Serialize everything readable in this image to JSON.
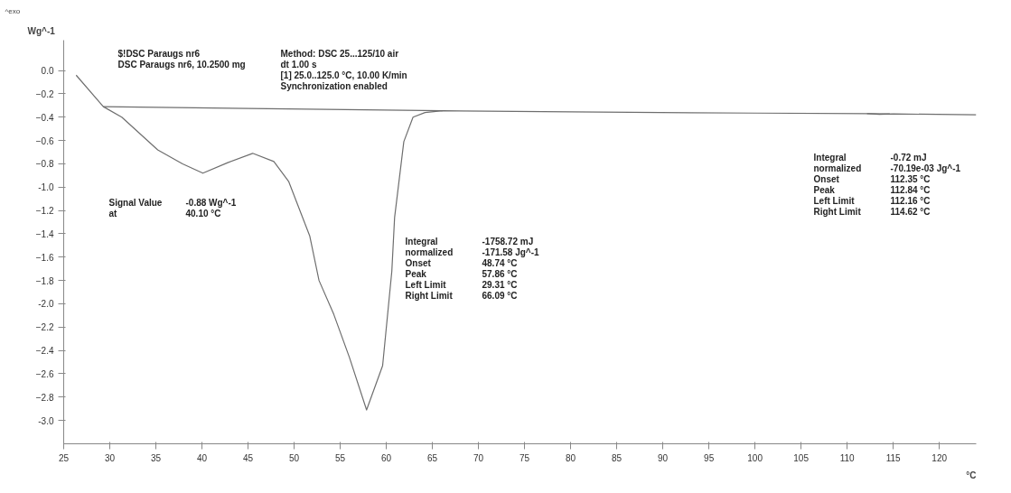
{
  "chart_data": {
    "type": "line",
    "xlabel": "°C",
    "ylabel": "Wg^-1",
    "xlim": [
      25,
      124
    ],
    "ylim": [
      -3.2,
      0.26
    ],
    "xticks": [
      25,
      30,
      35,
      40,
      45,
      50,
      55,
      60,
      65,
      70,
      75,
      80,
      85,
      90,
      95,
      100,
      105,
      110,
      115,
      120
    ],
    "yticks": [
      {
        "value": 0,
        "label": "0.0"
      },
      -0.2,
      -0.4,
      -0.6,
      -0.8,
      {
        "value": -1,
        "label": "-1.0"
      },
      -1.2,
      -1.4,
      -1.6,
      -1.8,
      {
        "value": -2,
        "label": "-2.0"
      },
      -2.2,
      -2.4,
      -2.6,
      -2.8,
      {
        "value": -3,
        "label": "-3.0"
      }
    ],
    "grid": false,
    "marker": "none",
    "line_style": "solid",
    "series": [
      {
        "color": "#6e6e6e",
        "x": [
          26.35,
          29.3,
          31.3,
          35.2,
          37.9,
          40.1,
          42.8,
          45.5,
          47.8,
          49.4,
          51.7,
          52.7,
          54.3,
          56.0,
          57.86,
          59.6,
          60.6,
          60.9,
          61.9,
          62.9,
          64.2,
          66.1,
          80,
          100,
          112.3,
          113.5,
          115,
          124
        ],
        "values": [
          -0.04,
          -0.31,
          -0.4,
          -0.68,
          -0.8,
          -0.88,
          -0.79,
          -0.71,
          -0.78,
          -0.95,
          -1.42,
          -1.8,
          -2.09,
          -2.46,
          -2.91,
          -2.53,
          -1.72,
          -1.26,
          -0.61,
          -0.4,
          -0.36,
          -0.345,
          -0.355,
          -0.365,
          -0.37,
          -0.375,
          -0.372,
          -0.38
        ]
      },
      {
        "color": "#6e6e6e",
        "x": [
          29.31,
          66.09
        ],
        "values": [
          -0.31,
          -0.345
        ]
      },
      {
        "color": "#6e6e6e",
        "x": [
          112.16,
          114.62
        ],
        "values": [
          -0.37,
          -0.372
        ]
      }
    ],
    "annotations": [
      "^exo",
      "$!DSC Paraugs nr6\nDSC Paraugs nr6, 10.2500 mg",
      "Method: DSC 25...125/10 air\ndt 1.00 s\n[1] 25.0..125.0 °C, 10.00 K/min\nSynchronization enabled",
      "Signal Value\t-0.88 Wg^-1\nat\t40.10 °C",
      "Integral\t-1758.72 mJ\n  normalized\t-171.58 Jg^-1\nOnset\t48.74 °C\nPeak\t57.86 °C\nLeft Limit\t29.31 °C\nRight Limit\t66.09 °C",
      "Integral\t-0.72 mJ\n  normalized\t-70.19e-03 Jg^-1\nOnset\t112.35 °C\nPeak\t112.84 °C\nLeft Limit\t112.16 °C\nRight Limit\t114.62 °C"
    ]
  }
}
